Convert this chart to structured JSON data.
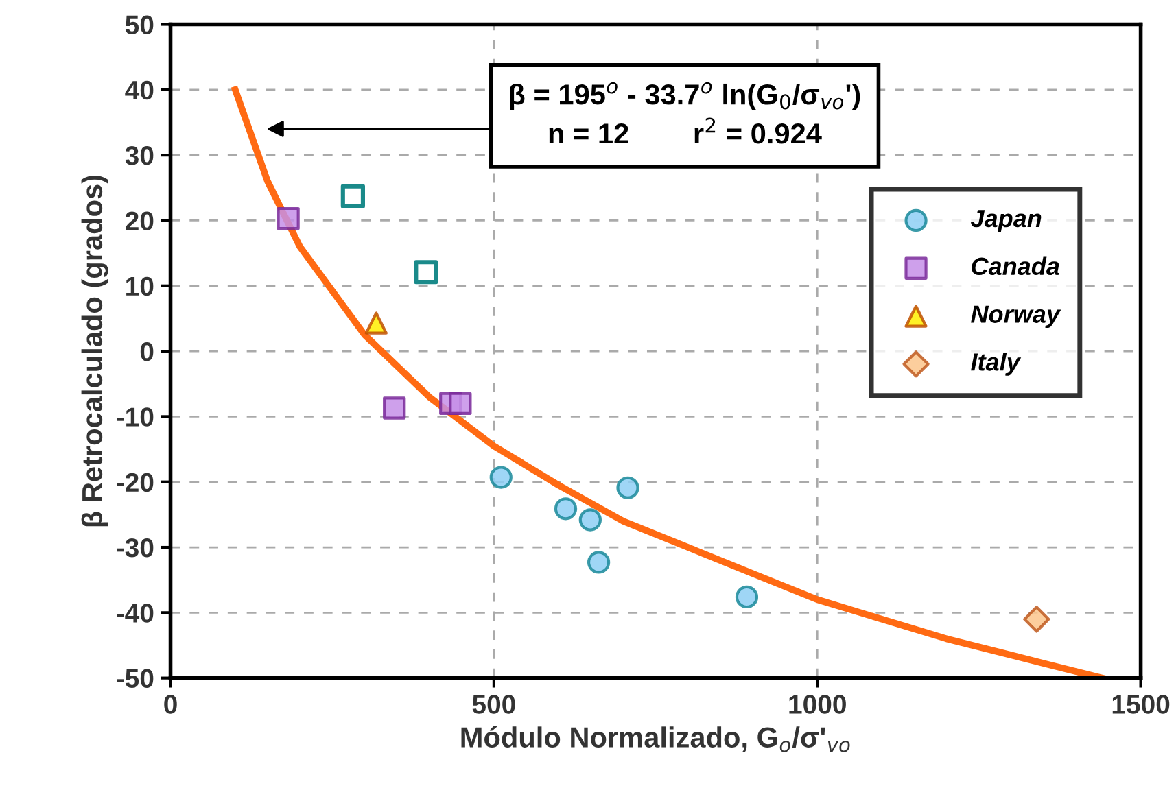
{
  "chart_data": {
    "type": "scatter",
    "xlabel": "Módulo Normalizado, G$_{o}$/σ'$_{vo}$",
    "ylabel": "β Retrocalculado (grados)",
    "xlim": [
      0,
      1500
    ],
    "xticks": [
      0,
      500,
      1000,
      1500
    ],
    "ylim": [
      -50,
      50
    ],
    "yticks": [
      -50,
      -40,
      -30,
      -20,
      -10,
      0,
      10,
      20,
      30,
      40,
      50
    ],
    "grid": true,
    "legend": "right",
    "series": [
      {
        "type": "line",
        "color": "#ff6a13",
        "line_style": "solid",
        "marker": "none",
        "x": [
          100,
          150,
          200,
          300,
          400,
          500,
          600,
          700,
          800,
          900,
          1000,
          1100,
          1200,
          1300,
          1440
        ],
        "values": [
          40,
          26,
          16,
          2.5,
          -7,
          -14.5,
          -20.5,
          -26,
          -30,
          -34,
          -38,
          -41,
          -44,
          -46.5,
          -50
        ]
      },
      {
        "name": "Japan",
        "color": "#8ecff5",
        "marker": "circle",
        "x": [
          511,
          611,
          649,
          707,
          662,
          891
        ],
        "values": [
          -19.3,
          -24.1,
          -25.8,
          -20.9,
          -32.3,
          -37.6
        ]
      },
      {
        "name": "Canada",
        "color": "#c58fe8",
        "marker": "square",
        "x": [
          182,
          346,
          433,
          448
        ],
        "values": [
          20.3,
          -8.7,
          -8,
          -8
        ]
      },
      {
        "name": "Norway",
        "color": "#ffee00",
        "marker": "triangle",
        "x": [
          318
        ],
        "values": [
          4.3
        ]
      },
      {
        "name": "Italy",
        "color": "#fbc58c",
        "marker": "diamond",
        "x": [
          1339
        ],
        "values": [
          -41
        ]
      },
      {
        "color": "#1a8a8a",
        "marker": "square",
        "x": [
          282,
          395
        ],
        "values": [
          23.7,
          12.1
        ]
      }
    ],
    "annotations": [
      "β = 195$^{o}$ - 33.7$^{o}$ ln(G$_{0}$/σ$_{vo}$')\nn = 12        r$^{2}$ = 0.924"
    ]
  }
}
